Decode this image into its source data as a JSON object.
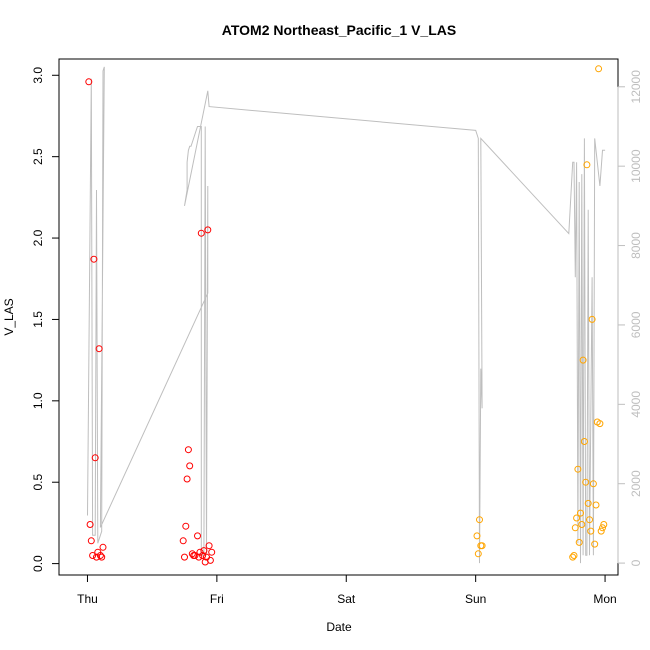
{
  "chart_data": {
    "type": "scatter",
    "title": "ATOM2 Northeast_Pacific_1 V_LAS",
    "xlabel": "Date",
    "ylabel": "V_LAS",
    "x_ticks": [
      "Thu",
      "Fri",
      "Sat",
      "Sun",
      "Mon"
    ],
    "xlim_days": [
      -0.22,
      4.1
    ],
    "ylim": [
      -0.07,
      3.1
    ],
    "y_ticks": [
      0.0,
      0.5,
      1.0,
      1.5,
      2.0,
      2.5,
      3.0
    ],
    "y_tick_labels": [
      "0.0",
      "0.5",
      "1.0",
      "1.5",
      "2.0",
      "2.5",
      "3.0"
    ],
    "y2lim": [
      -300,
      12700
    ],
    "y2_ticks": [
      0,
      2000,
      4000,
      6000,
      8000,
      10000,
      12000
    ],
    "y2_tick_labels": [
      "0",
      "2000",
      "4000",
      "6000",
      "8000",
      "10000",
      "12000"
    ],
    "grid": false,
    "colors": {
      "red_series": "#ff0000",
      "orange_series": "#ffa500",
      "line": "#bebebe",
      "axis": "#000000",
      "right_axis": "#bebebe"
    },
    "series": [
      {
        "marker": "circle-open",
        "color": "#ff0000",
        "points": [
          [
            0.01,
            2.96
          ],
          [
            0.02,
            0.24
          ],
          [
            0.03,
            0.14
          ],
          [
            0.04,
            0.05
          ],
          [
            0.05,
            1.87
          ],
          [
            0.06,
            0.65
          ],
          [
            0.07,
            0.04
          ],
          [
            0.08,
            0.07
          ],
          [
            0.09,
            1.32
          ],
          [
            0.1,
            0.05
          ],
          [
            0.11,
            0.04
          ],
          [
            0.12,
            0.1
          ],
          [
            0.74,
            0.14
          ],
          [
            0.75,
            0.04
          ],
          [
            0.76,
            0.23
          ],
          [
            0.77,
            0.52
          ],
          [
            0.78,
            0.7
          ],
          [
            0.79,
            0.6
          ],
          [
            0.81,
            0.06
          ],
          [
            0.82,
            0.05
          ],
          [
            0.83,
            0.05
          ],
          [
            0.85,
            0.17
          ],
          [
            0.86,
            0.04
          ],
          [
            0.87,
            0.07
          ],
          [
            0.88,
            2.03
          ],
          [
            0.89,
            0.05
          ],
          [
            0.9,
            0.08
          ],
          [
            0.91,
            0.01
          ],
          [
            0.92,
            0.04
          ],
          [
            0.93,
            2.05
          ],
          [
            0.94,
            0.11
          ],
          [
            0.95,
            0.02
          ],
          [
            0.96,
            0.07
          ]
        ]
      },
      {
        "marker": "circle-open",
        "color": "#ffa500",
        "points": [
          [
            3.01,
            0.17
          ],
          [
            3.02,
            0.06
          ],
          [
            3.03,
            0.27
          ],
          [
            3.04,
            0.11
          ],
          [
            3.05,
            0.11
          ],
          [
            3.75,
            0.04
          ],
          [
            3.76,
            0.05
          ],
          [
            3.77,
            0.22
          ],
          [
            3.78,
            0.28
          ],
          [
            3.79,
            0.58
          ],
          [
            3.8,
            0.13
          ],
          [
            3.81,
            0.31
          ],
          [
            3.82,
            0.24
          ],
          [
            3.83,
            1.25
          ],
          [
            3.84,
            0.75
          ],
          [
            3.85,
            0.5
          ],
          [
            3.86,
            2.45
          ],
          [
            3.87,
            0.37
          ],
          [
            3.88,
            0.27
          ],
          [
            3.89,
            0.2
          ],
          [
            3.9,
            1.5
          ],
          [
            3.91,
            0.49
          ],
          [
            3.92,
            0.12
          ],
          [
            3.93,
            0.36
          ],
          [
            3.94,
            0.87
          ],
          [
            3.95,
            3.04
          ],
          [
            3.96,
            0.86
          ],
          [
            3.97,
            0.2
          ],
          [
            3.98,
            0.22
          ],
          [
            3.99,
            0.24
          ]
        ]
      }
    ],
    "line_series": {
      "axis": "right",
      "color": "#bebebe",
      "points": [
        [
          0.0,
          1200
        ],
        [
          0.03,
          12200
        ],
        [
          0.04,
          700
        ],
        [
          0.06,
          700
        ],
        [
          0.07,
          9400
        ],
        [
          0.08,
          500
        ],
        [
          0.11,
          800
        ],
        [
          0.12,
          12400
        ],
        [
          0.13,
          12500
        ],
        [
          0.1,
          900
        ],
        [
          0.93,
          6800
        ],
        [
          0.93,
          9500
        ],
        [
          0.92,
          200
        ],
        [
          0.91,
          11000
        ],
        [
          0.9,
          200
        ],
        [
          0.88,
          200
        ],
        [
          0.88,
          11000
        ],
        [
          0.86,
          11000
        ],
        [
          0.85,
          11000
        ],
        [
          0.84,
          10900
        ],
        [
          0.83,
          10800
        ],
        [
          0.81,
          10600
        ],
        [
          0.8,
          10500
        ],
        [
          0.79,
          10500
        ],
        [
          0.78,
          10400
        ],
        [
          0.77,
          10100
        ],
        [
          0.77,
          9400
        ],
        [
          0.76,
          9200
        ],
        [
          0.75,
          9000
        ],
        [
          0.93,
          11900
        ],
        [
          0.94,
          11500
        ],
        [
          3.0,
          10900
        ],
        [
          3.01,
          10800
        ],
        [
          3.02,
          10700
        ],
        [
          3.03,
          0
        ],
        [
          3.04,
          4900
        ],
        [
          3.05,
          3900
        ],
        [
          3.04,
          10700
        ],
        [
          3.72,
          8300
        ],
        [
          3.75,
          10100
        ],
        [
          3.76,
          10100
        ],
        [
          3.77,
          7200
        ],
        [
          3.78,
          10100
        ],
        [
          3.79,
          500
        ],
        [
          3.8,
          9600
        ],
        [
          3.81,
          0
        ],
        [
          3.82,
          9800
        ],
        [
          3.83,
          200
        ],
        [
          3.84,
          10700
        ],
        [
          3.85,
          200
        ],
        [
          3.86,
          200
        ],
        [
          3.87,
          8900
        ],
        [
          3.88,
          200
        ],
        [
          3.9,
          7200
        ],
        [
          3.91,
          200
        ],
        [
          3.92,
          10700
        ],
        [
          3.94,
          10100
        ],
        [
          3.96,
          9500
        ],
        [
          3.98,
          10400
        ],
        [
          4.0,
          10400
        ]
      ]
    }
  }
}
